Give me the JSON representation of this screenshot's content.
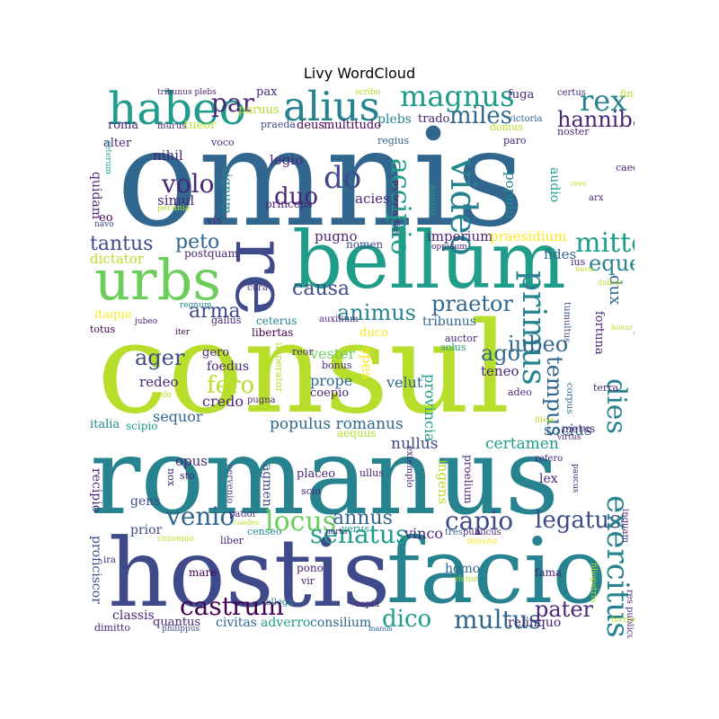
{
  "title": "Livy WordCloud",
  "palette": [
    "#440154",
    "#482777",
    "#3f4a8a",
    "#31678e",
    "#26838f",
    "#1f9d8a",
    "#6cce5a",
    "#b6de2b",
    "#fee825"
  ],
  "words": [
    "omnis",
    "consul",
    "romanus",
    "hostis",
    "facio",
    "bellum",
    "urbs",
    "re",
    "habeo",
    "alius",
    "magnus",
    "rex",
    "miles",
    "hannibal",
    "par",
    "do",
    "video",
    "duo",
    "volo",
    "accipio",
    "tantus",
    "mitto",
    "peto",
    "eques",
    "primus",
    "praetor",
    "animus",
    "iubeo",
    "causa",
    "arma",
    "ager",
    "fero",
    "ago",
    "tempus",
    "dies",
    "venio",
    "locus",
    "capio",
    "legatus",
    "senatus",
    "annus",
    "castrum",
    "dico",
    "multus",
    "pater",
    "exercitus",
    "populus romanus",
    "certamen",
    "socius",
    "provincia",
    "nullus",
    "spes",
    "vester",
    "prope",
    "velut",
    "credo",
    "sequor",
    "redeo",
    "teneo",
    "imperium",
    "praesidium",
    "fides",
    "dux",
    "pugno",
    "nomen",
    "legio",
    "acies",
    "populu",
    "audio",
    "signum",
    "simul",
    "nihil",
    "quidam",
    "alter",
    "roma",
    "tueor",
    "paruus",
    "pax",
    "plebs",
    "trado",
    "regius",
    "paro",
    "domus",
    "noster",
    "victoria",
    "fuga",
    "certus",
    "finis",
    "tribunus plebs",
    "scribo",
    "praeda",
    "deus",
    "multitudo",
    "murus",
    "voco",
    "princeps",
    "posterus dies",
    "nuntio",
    "arx",
    "caedo",
    "creo",
    "vis",
    "dictator",
    "postquam",
    "oppidum",
    "ius",
    "navis",
    "dubius",
    "cura",
    "gallus",
    "regnum",
    "auxilium",
    "ceterus",
    "libertas",
    "tribunus",
    "fortuna",
    "tumultus",
    "honor",
    "magistratus",
    "itaque",
    "jubeo",
    "totus",
    "iter",
    "reor",
    "duco",
    "auctor",
    "solus",
    "bonus",
    "imperator",
    "foedus",
    "gero",
    "coepio",
    "adeo",
    "terra",
    "corpus",
    "ordo",
    "pugna",
    "italia",
    "scipio",
    "aequus",
    "metus",
    "virtus",
    "filius",
    "recipio",
    "opus",
    "sto",
    "nox",
    "pervenio",
    "agmen",
    "placeo",
    "scio",
    "ullus",
    "extemplo",
    "ingens",
    "proelium",
    "lex",
    "refero",
    "paucus",
    "gens",
    "prior",
    "convenio",
    "proficiscor",
    "ira",
    "patior",
    "caedes",
    "censeo",
    "porta",
    "verus",
    "vinco",
    "tres",
    "publicus",
    "moveo",
    "inquam",
    "liber",
    "mare",
    "pono",
    "vir",
    "homo",
    "victor",
    "fama",
    "filiopatria",
    "classis",
    "quantus",
    "collega",
    "civitas",
    "adverro",
    "consilium",
    "copia",
    "relinquo",
    "res publicus",
    "dimitto",
    "philippus",
    "manus",
    "terror",
    "eo",
    "navo",
    "ceterum",
    "pecunia"
  ]
}
